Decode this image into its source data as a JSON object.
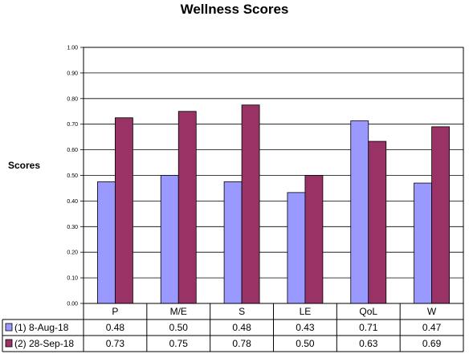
{
  "chart_data": {
    "type": "bar",
    "title": "Wellness Scores",
    "ylabel": "Scores",
    "xlabel": "",
    "ylim": [
      0,
      1
    ],
    "y_ticks": [
      "0.00",
      "0.10",
      "0.20",
      "0.30",
      "0.40",
      "0.50",
      "0.60",
      "0.70",
      "0.80",
      "0.90",
      "1.00"
    ],
    "categories": [
      "P",
      "M/E",
      "S",
      "LE",
      "QoL",
      "W"
    ],
    "series": [
      {
        "name": "(1) 8-Aug-18",
        "color": "#9999ff",
        "values": [
          0.475,
          0.5,
          0.475,
          0.433,
          0.713,
          0.47
        ],
        "labels": [
          "0.48",
          "0.50",
          "0.48",
          "0.43",
          "0.71",
          "0.47"
        ]
      },
      {
        "name": "(2) 28-Sep-18",
        "color": "#993366",
        "values": [
          0.725,
          0.75,
          0.775,
          0.5,
          0.633,
          0.69
        ],
        "labels": [
          "0.73",
          "0.75",
          "0.78",
          "0.50",
          "0.63",
          "0.69"
        ]
      }
    ],
    "grid": true,
    "legend": "data-table"
  }
}
